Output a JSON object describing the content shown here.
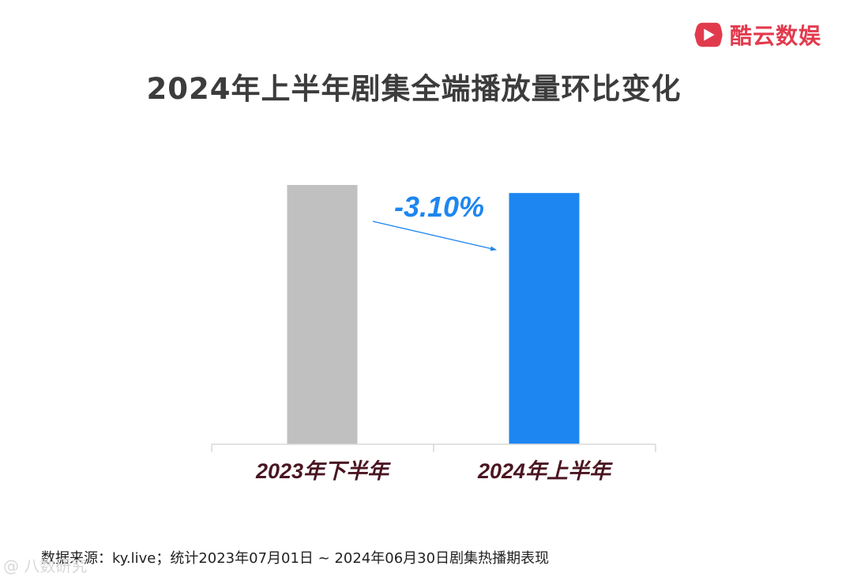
{
  "brand": {
    "name": "酷云数娱",
    "color": "#e23a4d"
  },
  "chart_data": {
    "type": "bar",
    "title": "2024年上半年剧集全端播放量环比变化",
    "categories": [
      "2023年下半年",
      "2024年上半年"
    ],
    "values": [
      100,
      96.9
    ],
    "colors": [
      "#c0c0c0",
      "#1d86f0"
    ],
    "ylim": [
      0,
      100
    ],
    "annotation": {
      "text": "-3.10%",
      "color": "#1d86f0",
      "from": "2023年下半年",
      "to": "2024年上半年"
    },
    "xlabel": "",
    "ylabel": "",
    "grid": false
  },
  "footer": {
    "source": "数据来源：ky.live；统计2023年07月01日 ~  2024年06月30日剧集热播期表现",
    "watermark": "@ 八数研究"
  }
}
